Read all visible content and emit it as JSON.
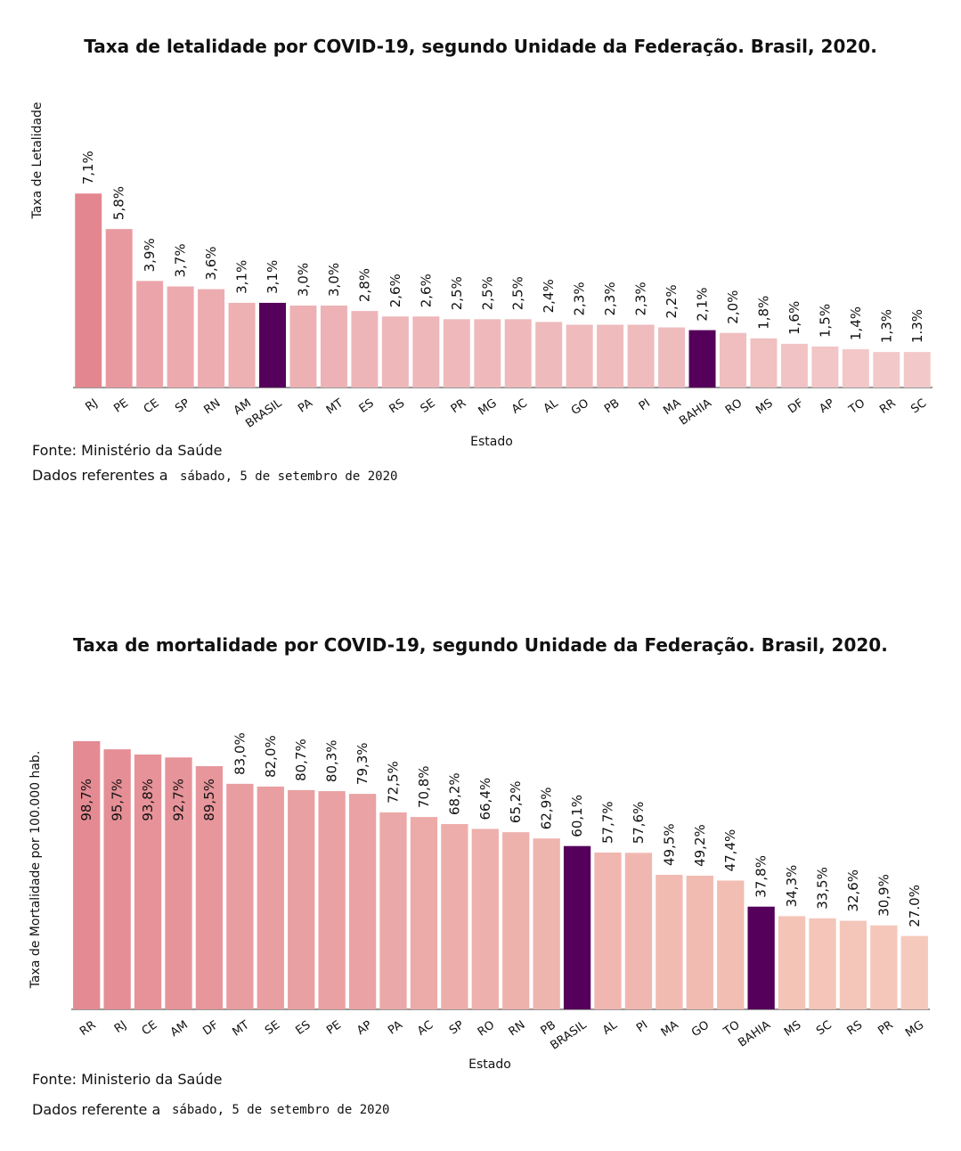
{
  "chart_data": [
    {
      "type": "bar",
      "title": "Taxa de letalidade por COVID-19, segundo Unidade da Federação. Brasil, 2020.",
      "xlabel": "Estado",
      "ylabel": "Taxa de Letalidade",
      "categories": [
        "RJ",
        "PE",
        "CE",
        "SP",
        "RN",
        "AM",
        "BRASIL",
        "PA",
        "MT",
        "ES",
        "RS",
        "SE",
        "PR",
        "MG",
        "AC",
        "AL",
        "GO",
        "PB",
        "PI",
        "MA",
        "BAHIA",
        "RO",
        "MS",
        "DF",
        "AP",
        "TO",
        "RR",
        "SC"
      ],
      "values": [
        7.1,
        5.8,
        3.9,
        3.7,
        3.6,
        3.1,
        3.1,
        3.0,
        3.0,
        2.8,
        2.6,
        2.6,
        2.5,
        2.5,
        2.5,
        2.4,
        2.3,
        2.3,
        2.3,
        2.2,
        2.1,
        2.0,
        1.8,
        1.6,
        1.5,
        1.4,
        1.3,
        1.3
      ],
      "labels": [
        "7,1%",
        "5,8%",
        "3,9%",
        "3,7%",
        "3,6%",
        "3,1%",
        "3,1%",
        "3,0%",
        "3,0%",
        "2,8%",
        "2,6%",
        "2,6%",
        "2,5%",
        "2,5%",
        "2,5%",
        "2,4%",
        "2,3%",
        "2,3%",
        "2,3%",
        "2,2%",
        "2,1%",
        "2,0%",
        "1,8%",
        "1,6%",
        "1,5%",
        "1,4%",
        "1,3%",
        "1.3%"
      ],
      "highlight": [
        "BRASIL",
        "BAHIA"
      ],
      "highlight_color": "#55005a",
      "colors": [
        "#e3868f",
        "#e8999f",
        "#eba5aa",
        "#ecaaae",
        "#ecacb0",
        "#edb0b3",
        "#55005a",
        "#edb1b4",
        "#edb2b5",
        "#eeb5b8",
        "#eeb7ba",
        "#eeb7ba",
        "#efb9bb",
        "#efb9bb",
        "#efb9bb",
        "#efbabc",
        "#efbbbd",
        "#efbbbd",
        "#efbbbd",
        "#efbcbe",
        "#55005a",
        "#f0bebf",
        "#f1c0c1",
        "#f2c3c4",
        "#f2c5c6",
        "#f3c7c8",
        "#f3c8c9",
        "#f3c8c9"
      ],
      "ylim": [
        0,
        7.5
      ],
      "grid": false,
      "legend": "none",
      "source": "Fonte: Ministério da Saúde",
      "date_prefix": "Dados referentes a",
      "date": "sábado, 5 de setembro de 2020"
    },
    {
      "type": "bar",
      "title": "Taxa de mortalidade por COVID-19, segundo Unidade da Federação. Brasil, 2020.",
      "xlabel": "Estado",
      "ylabel": "Taxa de Mortalidade por 100.000 hab.",
      "categories": [
        "RR",
        "RJ",
        "CE",
        "AM",
        "DF",
        "MT",
        "SE",
        "ES",
        "PE",
        "AP",
        "PA",
        "AC",
        "SP",
        "RO",
        "RN",
        "PB",
        "BRASIL",
        "AL",
        "PI",
        "MA",
        "GO",
        "TO",
        "BAHIA",
        "MS",
        "SC",
        "RS",
        "PR",
        "MG"
      ],
      "values": [
        98.7,
        95.7,
        93.8,
        92.7,
        89.5,
        83.0,
        82.0,
        80.7,
        80.3,
        79.3,
        72.5,
        70.8,
        68.2,
        66.4,
        65.2,
        62.9,
        60.1,
        57.7,
        57.6,
        49.5,
        49.2,
        47.4,
        37.8,
        34.3,
        33.5,
        32.6,
        30.9,
        27.0
      ],
      "labels": [
        "98,7%",
        "95,7%",
        "93,8%",
        "92,7%",
        "89,5%",
        "83,0%",
        "82,0%",
        "80,7%",
        "80,3%",
        "79,3%",
        "72,5%",
        "70,8%",
        "68,2%",
        "66,4%",
        "65,2%",
        "62,9%",
        "60,1%",
        "57,7%",
        "57,6%",
        "49,5%",
        "49,2%",
        "47,4%",
        "37,8%",
        "34,3%",
        "33,5%",
        "32,6%",
        "30,9%",
        "27.0%"
      ],
      "highlight": [
        "BRASIL",
        "BAHIA"
      ],
      "highlight_color": "#55005a",
      "colors": [
        "#e48a93",
        "#e58e96",
        "#e69298",
        "#e69399",
        "#e7969b",
        "#e89da0",
        "#e99ea1",
        "#e9a0a2",
        "#e9a1a3",
        "#eaa2a4",
        "#eba8a8",
        "#ecaba9",
        "#edaeab",
        "#edb0ac",
        "#eeb2ad",
        "#eeb4ae",
        "#55005a",
        "#f0b6b0",
        "#f0b7b0",
        "#f1bbb1",
        "#f1bbb1",
        "#f2bdb2",
        "#55005a",
        "#f4c4b7",
        "#f4c5b8",
        "#f4c6b9",
        "#f5c7ba",
        "#f5c9bc"
      ],
      "ylim": [
        0,
        100
      ],
      "grid": false,
      "legend": "none",
      "source": "Fonte: Ministerio da Saúde",
      "date_prefix": "Dados referente a",
      "date": "sábado, 5 de setembro de 2020"
    }
  ]
}
